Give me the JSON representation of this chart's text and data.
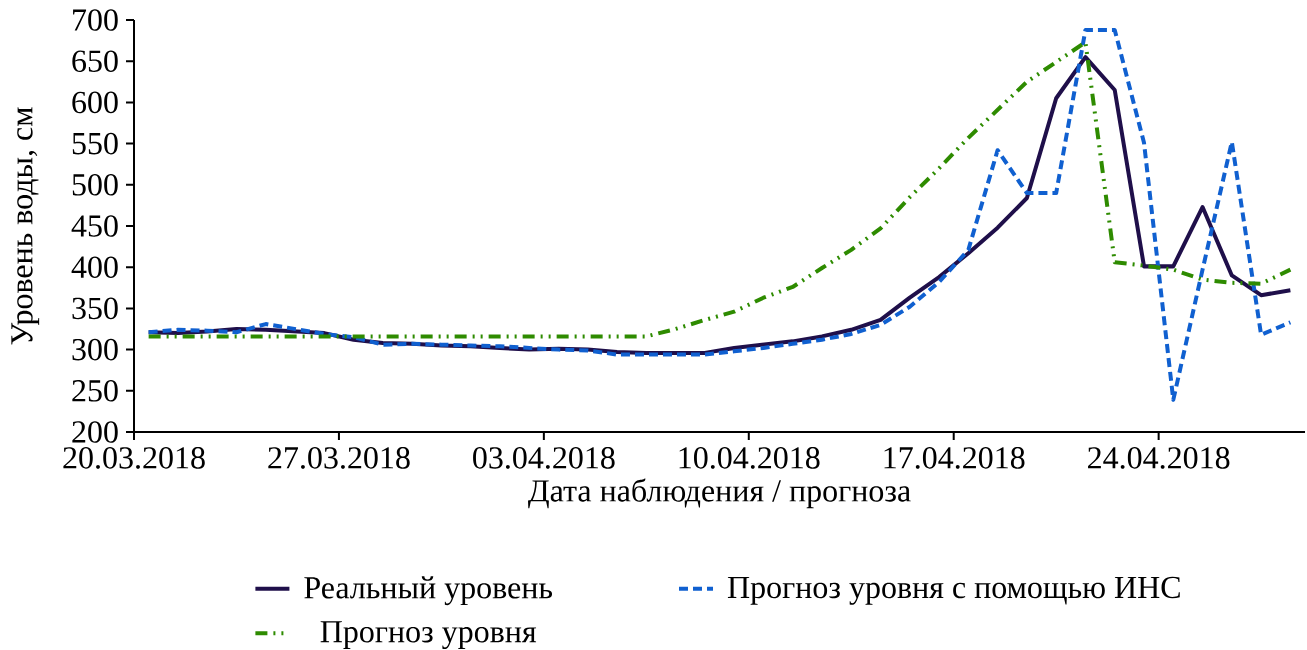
{
  "chart_data": {
    "type": "line",
    "xlabel": "Дата наблюдения / прогноза",
    "ylabel": "Уровень воды, см",
    "x": [
      "2018-03-20T12:00",
      "2018-03-21T12:00",
      "2018-03-22T12:00",
      "2018-03-23T12:00",
      "2018-03-24T12:00",
      "2018-03-25T12:00",
      "2018-03-26T12:00",
      "2018-03-27T12:00",
      "2018-03-28T12:00",
      "2018-03-29T12:00",
      "2018-03-30T12:00",
      "2018-03-31T12:00",
      "2018-04-01T12:00",
      "2018-04-02T12:00",
      "2018-04-03T12:00",
      "2018-04-04T12:00",
      "2018-04-05T12:00",
      "2018-04-06T12:00",
      "2018-04-07T12:00",
      "2018-04-08T12:00",
      "2018-04-09T12:00",
      "2018-04-10T12:00",
      "2018-04-11T12:00",
      "2018-04-12T12:00",
      "2018-04-13T12:00",
      "2018-04-14T12:00",
      "2018-04-15T12:00",
      "2018-04-16T12:00",
      "2018-04-17T12:00",
      "2018-04-18T12:00",
      "2018-04-19T12:00",
      "2018-04-20T12:00",
      "2018-04-21T12:00",
      "2018-04-22T12:00",
      "2018-04-23T12:00",
      "2018-04-24T12:00",
      "2018-04-25T12:00",
      "2018-04-26T12:00",
      "2018-04-27T12:00",
      "2018-04-28T12:00"
    ],
    "series": [
      {
        "name": "Реальный уровень",
        "color": "#1f0f4a",
        "line_style": "solid",
        "values": [
          321,
          320,
          322,
          325,
          324,
          322,
          320,
          312,
          308,
          307,
          305,
          304,
          302,
          300,
          301,
          300,
          297,
          296,
          296,
          296,
          302,
          306,
          310,
          316,
          324,
          336,
          363,
          388,
          417,
          448,
          484,
          605,
          655,
          615,
          401,
          401,
          473,
          390,
          366,
          372
        ]
      },
      {
        "name": "Прогноз уровня с помощью ИНС",
        "color": "#1060d0",
        "line_style": "dotted",
        "values": [
          321,
          324,
          323,
          321,
          331,
          325,
          319,
          315,
          306,
          307,
          306,
          305,
          304,
          302,
          300,
          299,
          294,
          294,
          294,
          294,
          298,
          302,
          307,
          312,
          319,
          330,
          352,
          382,
          421,
          542,
          490,
          490,
          688,
          688,
          551,
          239,
          397,
          552,
          318,
          333
        ]
      },
      {
        "name": "Прогноз уровня",
        "color": "#2e8b00",
        "line_style": "dashed",
        "values": [
          316,
          316,
          316,
          316,
          316,
          316,
          316,
          316,
          316,
          316,
          316,
          316,
          316,
          316,
          316,
          316,
          316,
          316,
          325,
          336,
          346,
          363,
          376,
          399,
          421,
          447,
          485,
          520,
          557,
          591,
          625,
          649,
          673,
          406,
          402,
          397,
          385,
          381,
          380,
          397
        ]
      }
    ],
    "xlim": [
      "2018-03-20",
      "2018-04-29"
    ],
    "xticks": [
      {
        "value": "2018-03-20",
        "label": "20.03.2018"
      },
      {
        "value": "2018-03-27",
        "label": "27.03.2018"
      },
      {
        "value": "2018-04-03",
        "label": "03.04.2018"
      },
      {
        "value": "2018-04-10",
        "label": "10.04.2018"
      },
      {
        "value": "2018-04-17",
        "label": "17.04.2018"
      },
      {
        "value": "2018-04-24",
        "label": "24.04.2018"
      }
    ],
    "ylim": [
      200,
      700
    ],
    "yticks": [
      200,
      250,
      300,
      350,
      400,
      450,
      500,
      550,
      600,
      650,
      700
    ],
    "legend": "bottom",
    "grid": false,
    "marker": "none"
  }
}
